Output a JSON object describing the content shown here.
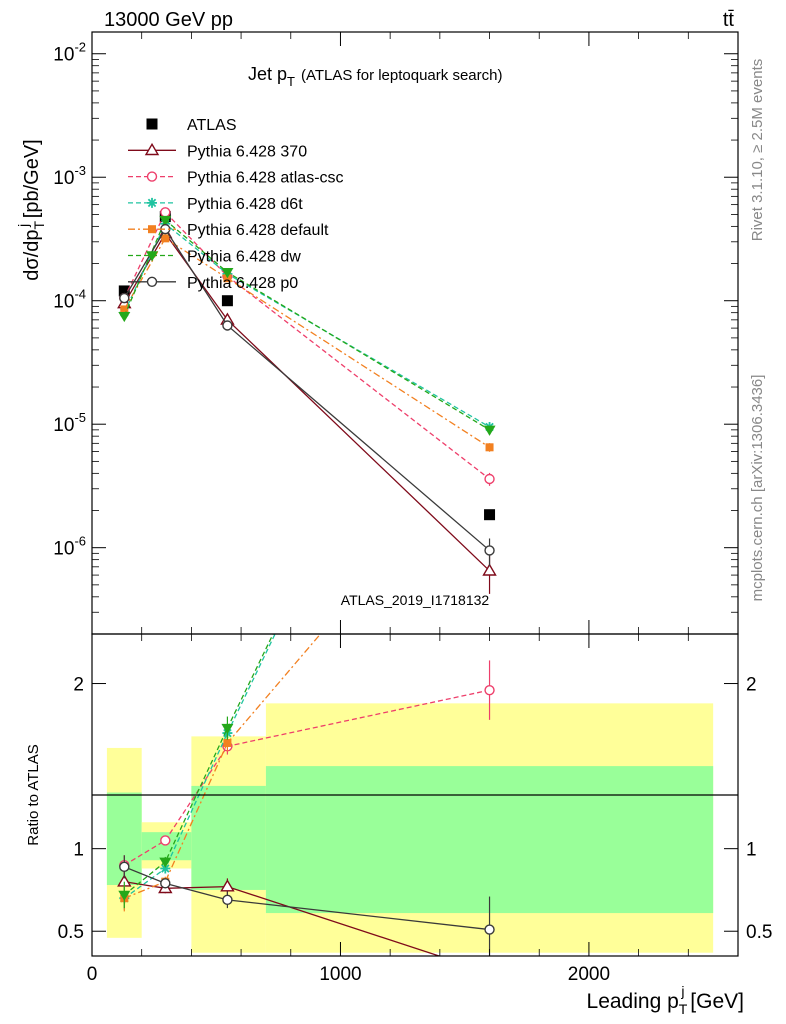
{
  "header": {
    "left": "13000 GeV pp",
    "right": "tt̄"
  },
  "plot_title": {
    "main": "Jet p",
    "sub": "T",
    "rest": "(ATLAS for leptoquark search)"
  },
  "side_labels": {
    "rivet": "Rivet 3.1.10, ≥ 2.5M events",
    "mcplots": "mcplots.cern.ch [arXiv:1306.3436]"
  },
  "watermark": "ATLAS_2019_I1718132",
  "y_axis_top": {
    "a": "dσ/dp",
    "sub1": "T",
    "sup1": "j",
    "b": " [pb/GeV]"
  },
  "y_axis_bottom": "Ratio to ATLAS",
  "x_axis": {
    "a": "Leading p",
    "sub": "T",
    "sup": "j",
    "b": " [GeV]"
  },
  "colors": {
    "ATLAS": "#000000",
    "p370": "#7f0a1a",
    "atlascsc": "#ee3f6b",
    "d6t": "#1fc3a0",
    "default": "#f28020",
    "dw": "#24a81a",
    "p0": "#3a3a3a",
    "band_yellow": "#ffff99",
    "band_green": "#99ff99"
  },
  "chart_data": {
    "type": "scatter",
    "x_range": [
      0,
      2600
    ],
    "main_ylim": [
      2e-07,
      0.015
    ],
    "main_log": true,
    "main_ticks": [
      {
        "v": 0.01,
        "m": "10",
        "e": "-2"
      },
      {
        "v": 0.001,
        "m": "10",
        "e": "-3"
      },
      {
        "v": 0.0001,
        "m": "10",
        "e": "-4"
      },
      {
        "v": 1e-05,
        "m": "10",
        "e": "-5"
      },
      {
        "v": 1e-06,
        "m": "10",
        "e": "-6"
      }
    ],
    "ratio_ylim": [
      0.35,
      2.3
    ],
    "ratio_ticks": [
      {
        "v": 0.5,
        "label": "0.5"
      },
      {
        "v": 1,
        "label": "1"
      },
      {
        "v": 2,
        "label": "2"
      }
    ],
    "x_ticks": [
      {
        "v": 0,
        "label": "0"
      },
      {
        "v": 1000,
        "label": "1000"
      },
      {
        "v": 2000,
        "label": "2000"
      }
    ],
    "bins": [
      [
        60,
        200
      ],
      [
        200,
        400
      ],
      [
        400,
        700
      ],
      [
        700,
        2500
      ]
    ],
    "x": [
      130,
      295,
      545,
      1600
    ],
    "ATLAS": [
      0.00012,
      0.00048,
      0.0001,
      1.85e-06
    ],
    "bands": {
      "green": [
        [
          0.78,
          1.34
        ],
        [
          0.93,
          1.1
        ],
        [
          0.75,
          1.38
        ],
        [
          0.61,
          1.5
        ]
      ],
      "yellow": [
        [
          0.46,
          1.61
        ],
        [
          0.88,
          1.16
        ],
        [
          0.37,
          1.68
        ],
        [
          0.37,
          1.88
        ]
      ]
    },
    "series": [
      {
        "name": "ATLAS",
        "key": "ATLAS",
        "marker": "square",
        "dash": "none",
        "main": [
          0.00012,
          0.00048,
          0.0001,
          1.85e-06
        ],
        "main_err": [
          0,
          0,
          0,
          0
        ],
        "ratio": null,
        "ratio_err": null
      },
      {
        "name": "Pythia 6.428 370",
        "key": "p370",
        "marker": "triangle",
        "dash": "solid",
        "main": [
          9.5e-05,
          0.00035,
          7e-05,
          6.5e-07
        ],
        "main_err": [
          0.08,
          0.04,
          0.05,
          0.35
        ],
        "ratio": [
          0.8,
          0.76,
          0.77,
          0.25
        ],
        "ratio_err": [
          0.08,
          0.03,
          0.05,
          0
        ]
      },
      {
        "name": "Pythia 6.428 atlas-csc",
        "key": "atlascsc",
        "marker": "circle",
        "dash": "5,3",
        "main": [
          0.000105,
          0.00052,
          0.000158,
          3.6e-06
        ],
        "main_err": [
          0.05,
          0.03,
          0.04,
          0.12
        ],
        "ratio": [
          0.9,
          1.05,
          1.62,
          1.96
        ],
        "ratio_err": [
          0.06,
          0.03,
          0.05,
          0.18
        ]
      },
      {
        "name": "Pythia 6.428 d6t",
        "key": "d6t",
        "marker": "star",
        "dash": "5,3",
        "main": [
          8e-05,
          0.00042,
          0.000165,
          9.5e-06
        ],
        "main_err": [
          0.06,
          0.04,
          0.04,
          0.06
        ],
        "ratio": [
          0.7,
          0.88,
          1.7,
          5.0
        ],
        "ratio_err": [
          0.07,
          0.03,
          0.06,
          0
        ]
      },
      {
        "name": "Pythia 6.428 default",
        "key": "default",
        "marker": "square-sm",
        "dash": "7,3,2,3",
        "main": [
          8.5e-05,
          0.00032,
          0.000152,
          6.5e-06
        ],
        "main_err": [
          0.06,
          0.04,
          0.04,
          0.08
        ],
        "ratio": [
          0.7,
          0.8,
          1.64,
          3.5
        ],
        "ratio_err": [
          0.08,
          0.03,
          0.05,
          0
        ]
      },
      {
        "name": "Pythia 6.428 dw",
        "key": "dw",
        "marker": "triangle-down",
        "dash": "5,3",
        "main": [
          7.5e-05,
          0.00045,
          0.00017,
          9e-06
        ],
        "main_err": [
          0.07,
          0.04,
          0.04,
          0.06
        ],
        "ratio": [
          0.72,
          0.92,
          1.73,
          5.0
        ],
        "ratio_err": [
          0.08,
          0.03,
          0.07,
          0
        ]
      },
      {
        "name": "Pythia 6.428 p0",
        "key": "p0",
        "marker": "circle",
        "dash": "solid",
        "main": [
          0.000105,
          0.00038,
          6.3e-05,
          9.5e-07
        ],
        "main_err": [
          0.06,
          0.04,
          0.05,
          0.25
        ],
        "ratio": [
          0.89,
          0.79,
          0.69,
          0.51
        ],
        "ratio_err": [
          0.07,
          0.03,
          0.05,
          0.2
        ]
      }
    ]
  }
}
